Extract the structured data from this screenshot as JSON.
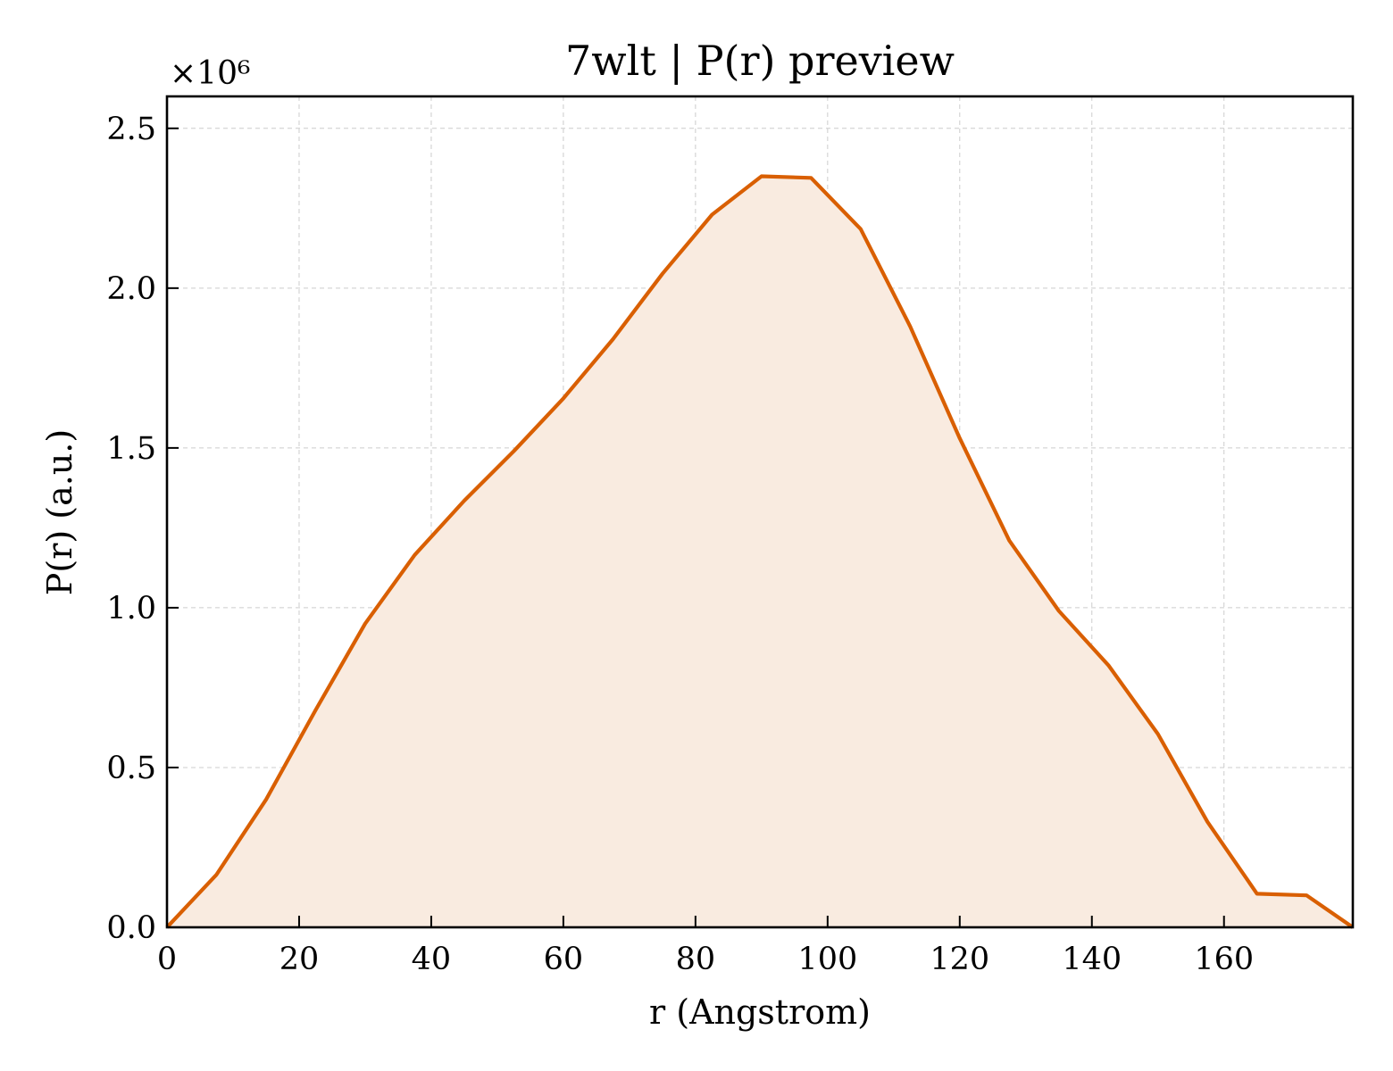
{
  "chart_data": {
    "type": "area",
    "title": "7wlt | P(r) preview",
    "xlabel": "r (Angstrom)",
    "ylabel": "P(r) (a.u.)",
    "y_offset_label": "×10⁶",
    "xlim": [
      0,
      179.5
    ],
    "ylim": [
      0,
      2.6
    ],
    "xticks": [
      0,
      20,
      40,
      60,
      80,
      100,
      120,
      140,
      160
    ],
    "yticks": [
      0.0,
      0.5,
      1.0,
      1.5,
      2.0,
      2.5
    ],
    "ytick_labels": [
      "0.0",
      "0.5",
      "1.0",
      "1.5",
      "2.0",
      "2.5"
    ],
    "grid": true,
    "line_color": "#d95f02",
    "fill_color": "#f9ebe0",
    "series": [
      {
        "x": [
          0,
          7.5,
          15,
          22.5,
          30,
          37.5,
          45,
          52.5,
          60,
          67.5,
          75,
          82.5,
          90,
          97.5,
          105,
          112.5,
          120,
          127.5,
          135,
          142.5,
          150,
          157.5,
          165,
          172.5,
          179.5
        ],
        "y": [
          0.0,
          0.165,
          0.4,
          0.68,
          0.95,
          1.165,
          1.335,
          1.49,
          1.655,
          1.84,
          2.045,
          2.23,
          2.35,
          2.345,
          2.185,
          1.88,
          1.53,
          1.21,
          0.99,
          0.82,
          0.605,
          0.33,
          0.105,
          0.1,
          0.0
        ]
      }
    ]
  }
}
